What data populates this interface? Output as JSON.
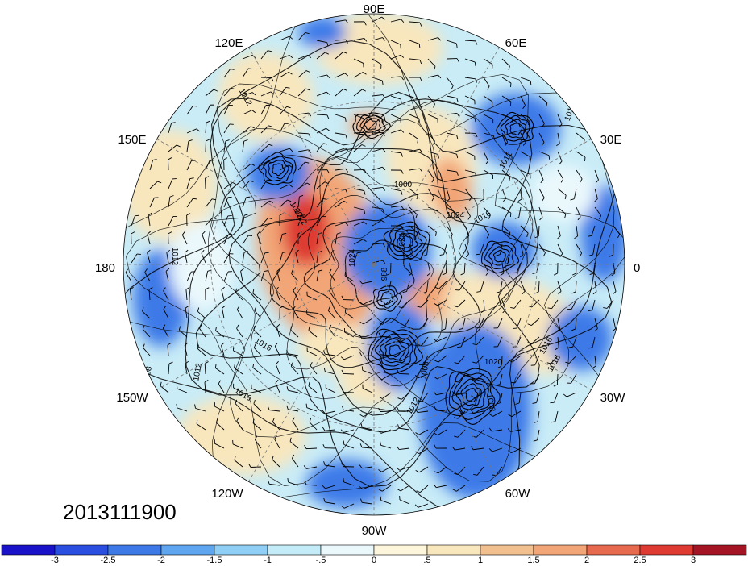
{
  "map": {
    "projection": "north-polar-stereographic",
    "longitude_labels": [
      "90E",
      "60E",
      "30E",
      "0",
      "30W",
      "60W",
      "90W",
      "120W",
      "150W",
      "180",
      "150E",
      "120E"
    ],
    "contour_labels": [
      "1012",
      "1012",
      "1012",
      "1016",
      "1024",
      "1000",
      "1024",
      "1016",
      "1020",
      "1016",
      "1008",
      "1016",
      "1012",
      "1008",
      "1012",
      "1012",
      "1016",
      "1012",
      "1008",
      "1012",
      "1024",
      "988"
    ],
    "date": "2013111900",
    "anomaly_colors": {
      "strong_negative": "#1a12c9",
      "negative": "#3d7ae8",
      "weak_negative": "#8fcff5",
      "near_zero": "#eaf8fc",
      "weak_positive": "#f8e6bd",
      "positive": "#f2a576",
      "strong_positive": "#de3a32"
    }
  },
  "colorbar": {
    "ticks": [
      "-3",
      "-2.5",
      "-2",
      "-1.5",
      "-1",
      "-.5",
      "0",
      ".5",
      "1",
      "1.5",
      "2",
      "2.5",
      "3"
    ],
    "colors": [
      "#1a12c9",
      "#2a4ee0",
      "#3d7ae8",
      "#5ea6f0",
      "#8fcff5",
      "#c4ecf8",
      "#eaf8fc",
      "#fdf6dc",
      "#f8e6bd",
      "#f2c08e",
      "#f2a576",
      "#e86a4e",
      "#de3a32",
      "#a51424"
    ]
  }
}
